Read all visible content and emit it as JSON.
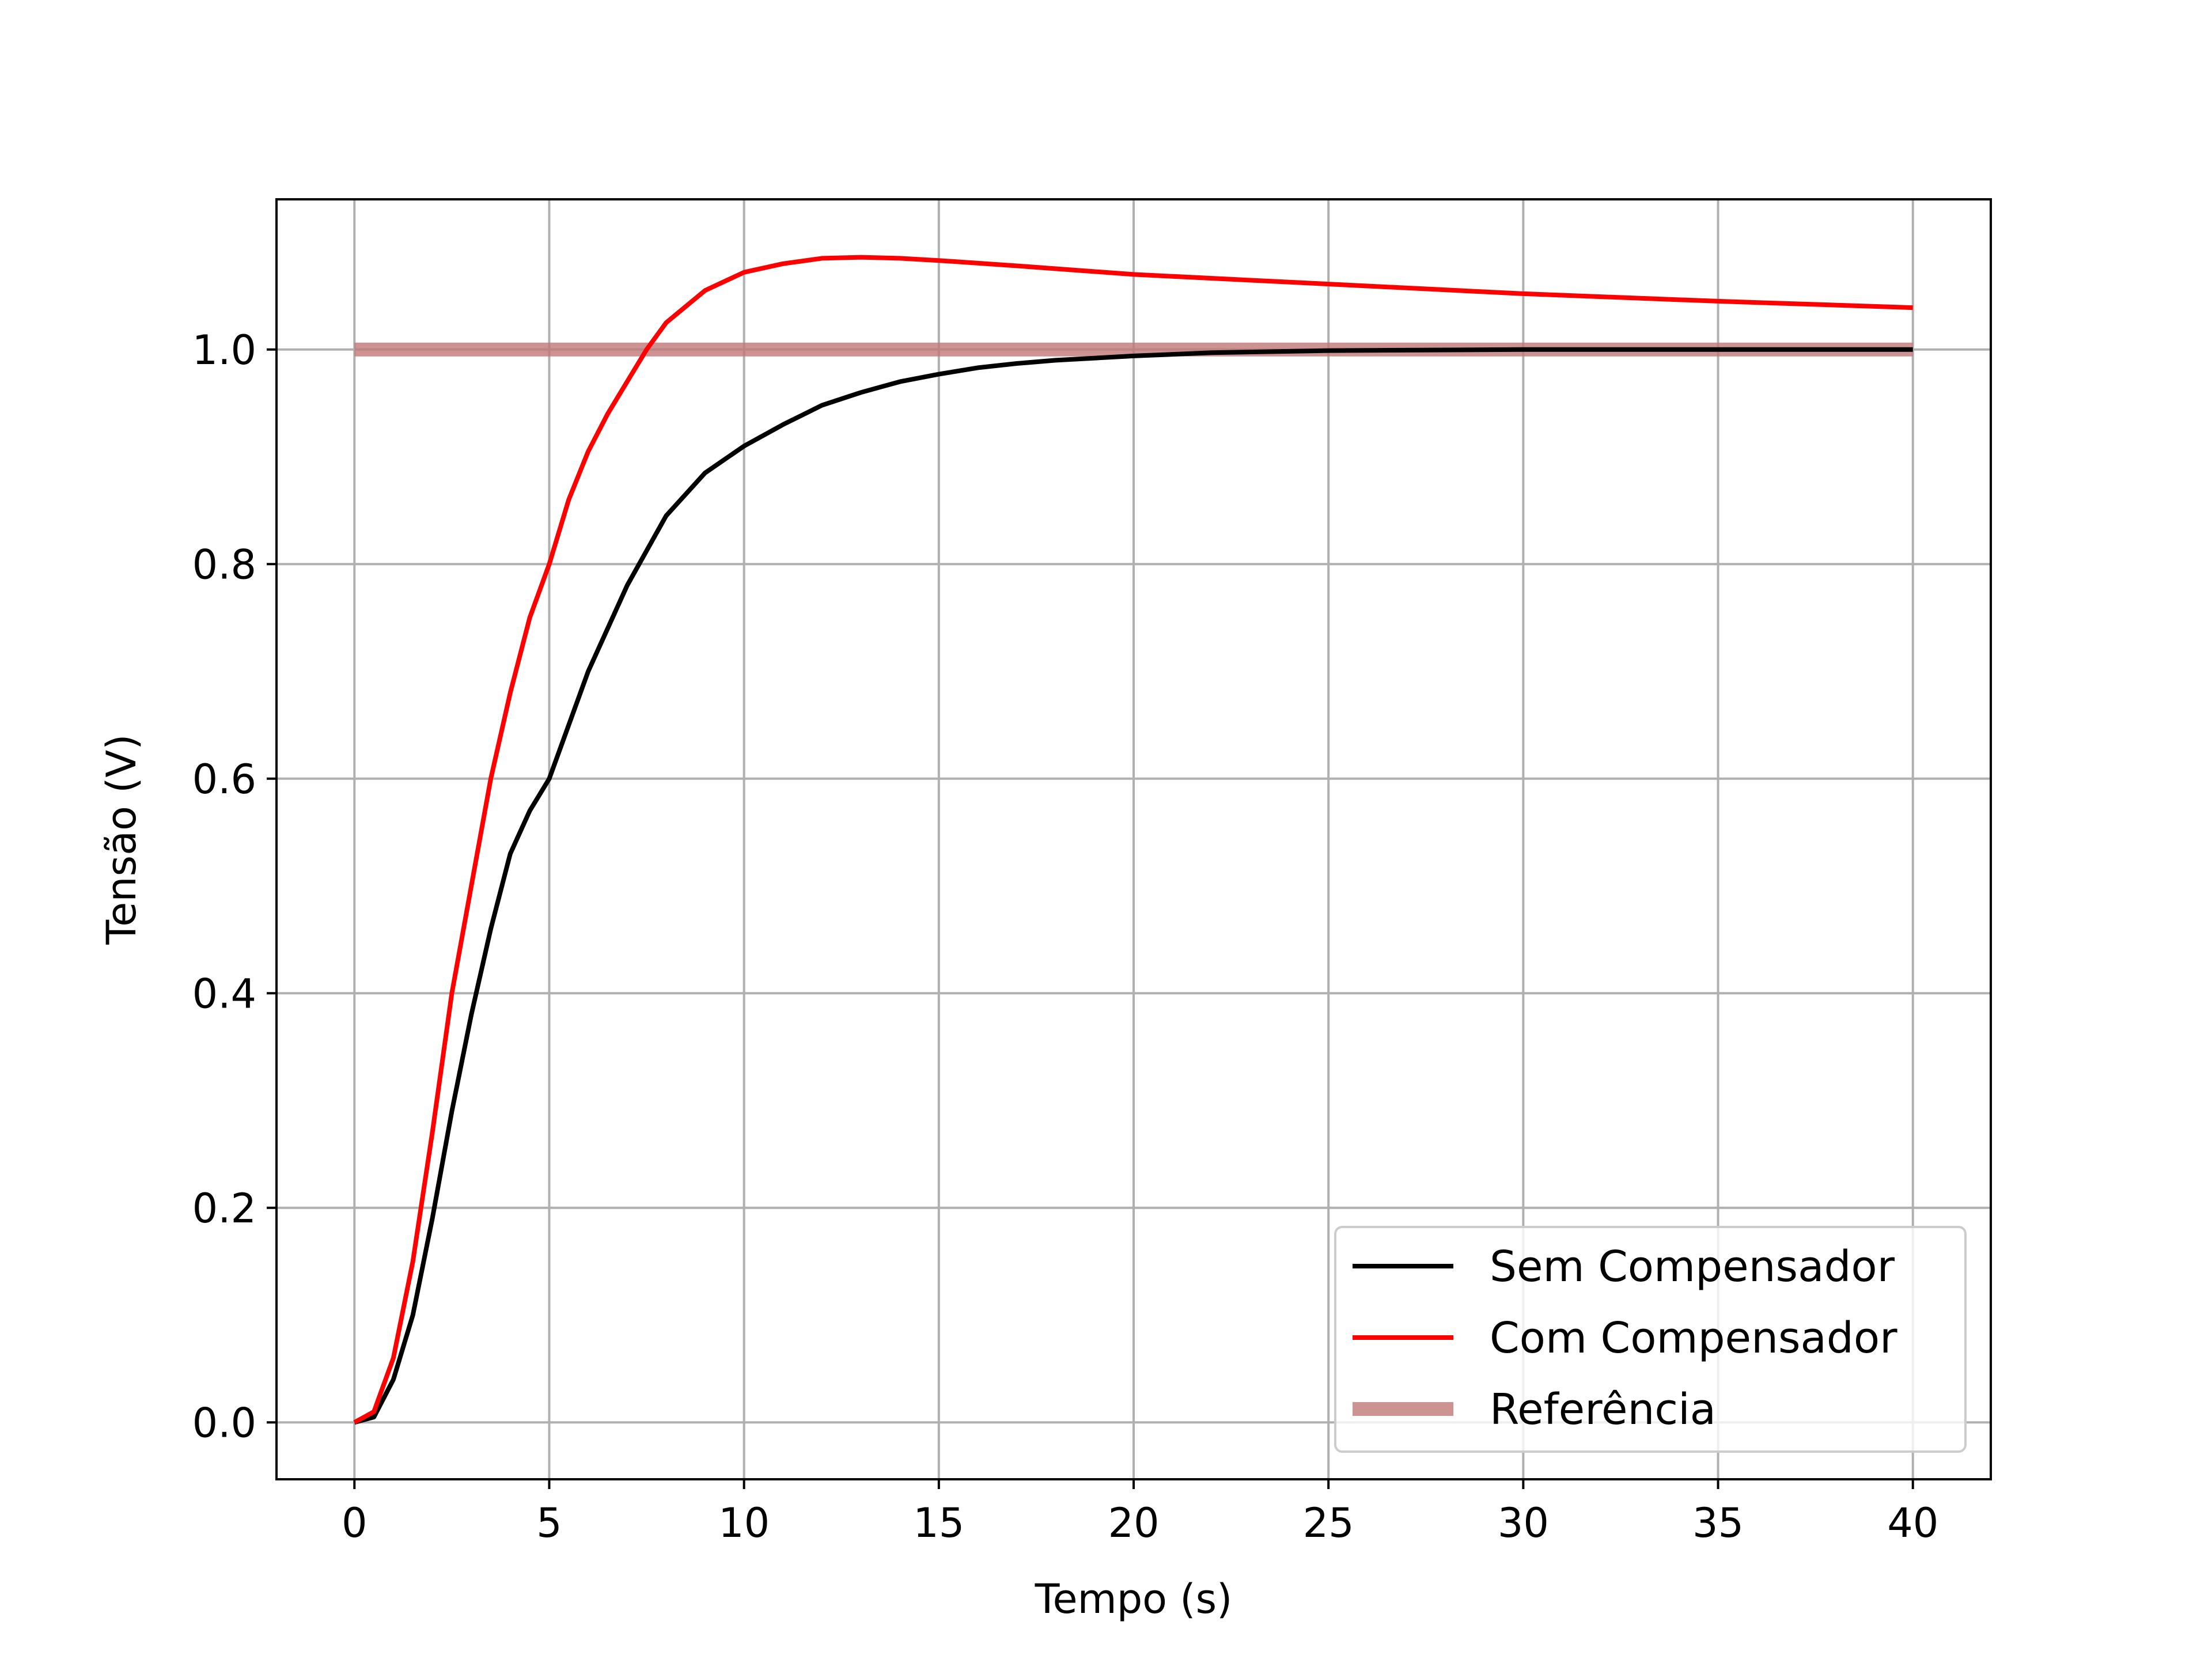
{
  "chart_data": {
    "type": "line",
    "title": "",
    "xlabel": "Tempo (s)",
    "ylabel": "Tensão (V)",
    "xlim": [
      -2,
      42
    ],
    "ylim": [
      -0.053,
      1.14
    ],
    "xticks": [
      0,
      5,
      10,
      15,
      20,
      25,
      30,
      35,
      40
    ],
    "yticks": [
      0.0,
      0.2,
      0.4,
      0.6,
      0.8,
      1.0
    ],
    "xtick_labels": [
      "0",
      "5",
      "10",
      "15",
      "20",
      "25",
      "30",
      "35",
      "40"
    ],
    "ytick_labels": [
      "0.0",
      "0.2",
      "0.4",
      "0.6",
      "0.8",
      "1.0"
    ],
    "grid": true,
    "legend_position": "lower-right",
    "series": [
      {
        "name": "Sem Compensador",
        "color": "#000000",
        "x": [
          0,
          0.5,
          1,
          1.5,
          2,
          2.5,
          3,
          3.5,
          4,
          4.5,
          5,
          6,
          7,
          8,
          9,
          10,
          11,
          12,
          13,
          14,
          15,
          16,
          17,
          18,
          20,
          22,
          25,
          30,
          35,
          40
        ],
        "values": [
          0,
          0.005,
          0.04,
          0.1,
          0.19,
          0.29,
          0.38,
          0.46,
          0.53,
          0.57,
          0.6,
          0.7,
          0.78,
          0.845,
          0.885,
          0.91,
          0.93,
          0.948,
          0.96,
          0.97,
          0.977,
          0.983,
          0.987,
          0.99,
          0.994,
          0.997,
          0.999,
          1.0,
          1.0,
          1.0
        ]
      },
      {
        "name": "Com Compensador",
        "color": "#ff0000",
        "x": [
          0,
          0.5,
          1,
          1.5,
          2,
          2.5,
          3,
          3.5,
          4,
          4.5,
          5,
          5.5,
          6,
          6.5,
          7,
          7.5,
          8,
          9,
          10,
          11,
          12,
          13,
          14,
          15,
          17,
          20,
          25,
          30,
          35,
          40
        ],
        "values": [
          0,
          0.01,
          0.06,
          0.15,
          0.27,
          0.4,
          0.5,
          0.6,
          0.68,
          0.75,
          0.8,
          0.86,
          0.905,
          0.94,
          0.97,
          1.0,
          1.025,
          1.055,
          1.072,
          1.08,
          1.085,
          1.086,
          1.085,
          1.083,
          1.078,
          1.07,
          1.061,
          1.052,
          1.045,
          1.039
        ]
      },
      {
        "name": "Referência",
        "color": "#c07878",
        "x": [
          0,
          40
        ],
        "values": [
          1.0,
          1.0
        ]
      }
    ]
  }
}
